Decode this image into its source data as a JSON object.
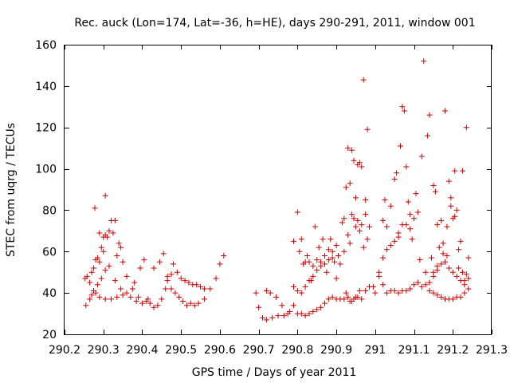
{
  "chart_data": {
    "type": "scatter",
    "title": "Rec. auck (Lon=174, Lat=-36, h=HE), days 290-291, 2011, window 001",
    "xlabel": "GPS time / Days of year 2011",
    "ylabel": "STEC from uqrg / TECUs",
    "xlim": [
      290.2,
      291.3
    ],
    "ylim": [
      20,
      160
    ],
    "xticks": [
      290.2,
      290.3,
      290.4,
      290.5,
      290.6,
      290.7,
      290.8,
      290.9,
      291,
      291.1,
      291.2,
      291.3
    ],
    "xtick_labels": [
      "290.2",
      "290.3",
      "290.4",
      "290.5",
      "290.6",
      "290.7",
      "290.8",
      "290.9",
      "291",
      "291.1",
      "291.2",
      "291.3"
    ],
    "yticks": [
      20,
      40,
      60,
      80,
      100,
      120,
      140,
      160
    ],
    "ytick_labels": [
      "20",
      "40",
      "60",
      "80",
      "100",
      "120",
      "140",
      "160"
    ],
    "grid": false,
    "legend": "none",
    "marker": "plus",
    "color": "#cc0000",
    "series": [
      {
        "points": [
          [
            290.253,
            47
          ],
          [
            290.258,
            48
          ],
          [
            290.265,
            45
          ],
          [
            290.27,
            50
          ],
          [
            290.275,
            52
          ],
          [
            290.28,
            56
          ],
          [
            290.285,
            57
          ],
          [
            290.29,
            55
          ],
          [
            290.295,
            62
          ],
          [
            290.3,
            60
          ],
          [
            290.305,
            68
          ],
          [
            290.31,
            67
          ],
          [
            290.315,
            70
          ],
          [
            290.32,
            75
          ],
          [
            290.33,
            75
          ],
          [
            290.335,
            58
          ],
          [
            290.34,
            64
          ],
          [
            290.345,
            62
          ],
          [
            290.35,
            55
          ],
          [
            290.36,
            48
          ],
          [
            290.38,
            45
          ],
          [
            290.395,
            52
          ],
          [
            290.405,
            56
          ],
          [
            290.255,
            34
          ],
          [
            290.265,
            37
          ],
          [
            290.275,
            41
          ],
          [
            290.285,
            44
          ],
          [
            290.295,
            47
          ],
          [
            290.305,
            51
          ],
          [
            290.315,
            53
          ],
          [
            290.33,
            46
          ],
          [
            290.345,
            42
          ],
          [
            290.36,
            40
          ],
          [
            290.37,
            38
          ],
          [
            290.385,
            36
          ],
          [
            290.4,
            35
          ],
          [
            290.415,
            37
          ],
          [
            290.278,
            81
          ],
          [
            290.29,
            69
          ],
          [
            290.3,
            67
          ],
          [
            290.305,
            87
          ],
          [
            290.325,
            69
          ],
          [
            290.27,
            39
          ],
          [
            290.28,
            40
          ],
          [
            290.29,
            38
          ],
          [
            290.305,
            37
          ],
          [
            290.32,
            37
          ],
          [
            290.335,
            38
          ],
          [
            290.35,
            39
          ],
          [
            290.375,
            42
          ],
          [
            290.39,
            38
          ],
          [
            290.43,
            33
          ],
          [
            290.44,
            34
          ],
          [
            290.45,
            37
          ],
          [
            290.46,
            42
          ],
          [
            290.465,
            48
          ],
          [
            290.475,
            49
          ],
          [
            290.48,
            54
          ],
          [
            290.49,
            50
          ],
          [
            290.5,
            47
          ],
          [
            290.51,
            46
          ],
          [
            290.52,
            45
          ],
          [
            290.53,
            44
          ],
          [
            290.54,
            44
          ],
          [
            290.55,
            43
          ],
          [
            290.56,
            42
          ],
          [
            290.575,
            42
          ],
          [
            290.59,
            47
          ],
          [
            290.6,
            54
          ],
          [
            290.61,
            58
          ],
          [
            290.43,
            52
          ],
          [
            290.445,
            55
          ],
          [
            290.455,
            59
          ],
          [
            290.465,
            46
          ],
          [
            290.475,
            42
          ],
          [
            290.485,
            40
          ],
          [
            290.495,
            38
          ],
          [
            290.505,
            36
          ],
          [
            290.515,
            34
          ],
          [
            290.525,
            35
          ],
          [
            290.535,
            34
          ],
          [
            290.545,
            35
          ],
          [
            290.56,
            37
          ],
          [
            290.42,
            35
          ],
          [
            290.41,
            36
          ],
          [
            290.693,
            40
          ],
          [
            290.7,
            33
          ],
          [
            290.71,
            28
          ],
          [
            290.72,
            27
          ],
          [
            290.72,
            41
          ],
          [
            290.73,
            40
          ],
          [
            290.735,
            28
          ],
          [
            290.745,
            38
          ],
          [
            290.75,
            29
          ],
          [
            290.76,
            34
          ],
          [
            290.765,
            29
          ],
          [
            290.775,
            30
          ],
          [
            290.78,
            31
          ],
          [
            290.79,
            34
          ],
          [
            290.79,
            65
          ],
          [
            290.8,
            79
          ],
          [
            290.805,
            60
          ],
          [
            290.81,
            66
          ],
          [
            290.815,
            54
          ],
          [
            290.82,
            55
          ],
          [
            290.825,
            58
          ],
          [
            290.83,
            55
          ],
          [
            290.835,
            46
          ],
          [
            290.84,
            53
          ],
          [
            290.845,
            72
          ],
          [
            290.85,
            56
          ],
          [
            290.855,
            62
          ],
          [
            290.86,
            55
          ],
          [
            290.865,
            66
          ],
          [
            290.87,
            58
          ],
          [
            290.875,
            50
          ],
          [
            290.88,
            61
          ],
          [
            290.885,
            66
          ],
          [
            290.89,
            57
          ],
          [
            290.895,
            55
          ],
          [
            290.9,
            47
          ],
          [
            290.905,
            58
          ],
          [
            290.91,
            54
          ],
          [
            290.8,
            30
          ],
          [
            290.81,
            30
          ],
          [
            290.82,
            29
          ],
          [
            290.83,
            30
          ],
          [
            290.84,
            31
          ],
          [
            290.85,
            32
          ],
          [
            290.86,
            33
          ],
          [
            290.87,
            35
          ],
          [
            290.88,
            37
          ],
          [
            290.89,
            38
          ],
          [
            290.9,
            37
          ],
          [
            290.91,
            37
          ],
          [
            290.92,
            37
          ],
          [
            290.79,
            43
          ],
          [
            290.8,
            41
          ],
          [
            290.81,
            40
          ],
          [
            290.82,
            43
          ],
          [
            290.83,
            46
          ],
          [
            290.84,
            48
          ],
          [
            290.85,
            51
          ],
          [
            290.86,
            53
          ],
          [
            290.87,
            54
          ],
          [
            290.88,
            56
          ],
          [
            290.89,
            60
          ],
          [
            290.9,
            63
          ],
          [
            290.915,
            74
          ],
          [
            290.92,
            76
          ],
          [
            290.925,
            91
          ],
          [
            290.93,
            110
          ],
          [
            290.935,
            93
          ],
          [
            290.94,
            109
          ],
          [
            290.945,
            104
          ],
          [
            290.95,
            86
          ],
          [
            290.955,
            102
          ],
          [
            290.96,
            103
          ],
          [
            290.965,
            101
          ],
          [
            290.97,
            143
          ],
          [
            290.975,
            85
          ],
          [
            290.98,
            119
          ],
          [
            290.985,
            72
          ],
          [
            290.92,
            60
          ],
          [
            290.93,
            68
          ],
          [
            290.935,
            64
          ],
          [
            290.94,
            78
          ],
          [
            290.945,
            76
          ],
          [
            290.95,
            72
          ],
          [
            290.955,
            75
          ],
          [
            290.96,
            70
          ],
          [
            290.965,
            73
          ],
          [
            290.97,
            62
          ],
          [
            290.975,
            78
          ],
          [
            290.98,
            66
          ],
          [
            290.925,
            40
          ],
          [
            290.93,
            38
          ],
          [
            290.935,
            36
          ],
          [
            290.94,
            36
          ],
          [
            290.945,
            37
          ],
          [
            290.95,
            38
          ],
          [
            290.955,
            38
          ],
          [
            290.96,
            41
          ],
          [
            290.965,
            37
          ],
          [
            290.975,
            41
          ],
          [
            290.985,
            43
          ],
          [
            290.995,
            43
          ],
          [
            291.0,
            40
          ],
          [
            291.01,
            48
          ],
          [
            291.02,
            44
          ],
          [
            291.03,
            40
          ],
          [
            291.04,
            41
          ],
          [
            291.05,
            41
          ],
          [
            291.06,
            40
          ],
          [
            291.07,
            41
          ],
          [
            291.08,
            41
          ],
          [
            291.09,
            42
          ],
          [
            291.1,
            44
          ],
          [
            291.11,
            45
          ],
          [
            291.12,
            43
          ],
          [
            291.13,
            44
          ],
          [
            291.14,
            45
          ],
          [
            291.15,
            48
          ],
          [
            291.16,
            51
          ],
          [
            291.01,
            50
          ],
          [
            291.02,
            57
          ],
          [
            291.03,
            61
          ],
          [
            291.04,
            63
          ],
          [
            291.05,
            65
          ],
          [
            291.06,
            69
          ],
          [
            291.07,
            73
          ],
          [
            291.08,
            73
          ],
          [
            291.09,
            78
          ],
          [
            291.02,
            75
          ],
          [
            291.025,
            85
          ],
          [
            291.03,
            72
          ],
          [
            291.04,
            82
          ],
          [
            291.05,
            95
          ],
          [
            291.055,
            98
          ],
          [
            291.06,
            67
          ],
          [
            291.065,
            111
          ],
          [
            291.07,
            130
          ],
          [
            291.075,
            128
          ],
          [
            291.08,
            101
          ],
          [
            291.085,
            84
          ],
          [
            291.09,
            71
          ],
          [
            291.095,
            66
          ],
          [
            291.1,
            76
          ],
          [
            291.105,
            88
          ],
          [
            291.11,
            79
          ],
          [
            291.115,
            56
          ],
          [
            291.12,
            106
          ],
          [
            291.125,
            152
          ],
          [
            291.13,
            50
          ],
          [
            291.135,
            116
          ],
          [
            291.14,
            126
          ],
          [
            291.145,
            57
          ],
          [
            291.15,
            92
          ],
          [
            291.155,
            89
          ],
          [
            291.16,
            73
          ],
          [
            291.165,
            62
          ],
          [
            291.17,
            75
          ],
          [
            291.175,
            59
          ],
          [
            291.18,
            128
          ],
          [
            291.185,
            58
          ],
          [
            291.19,
            94
          ],
          [
            291.195,
            86
          ],
          [
            291.2,
            76
          ],
          [
            291.205,
            99
          ],
          [
            291.21,
            80
          ],
          [
            291.215,
            52
          ],
          [
            291.22,
            65
          ],
          [
            291.225,
            99
          ],
          [
            291.23,
            46
          ],
          [
            291.235,
            120
          ],
          [
            291.24,
            57
          ],
          [
            291.14,
            41
          ],
          [
            291.15,
            40
          ],
          [
            291.16,
            39
          ],
          [
            291.17,
            38
          ],
          [
            291.18,
            37
          ],
          [
            291.19,
            37
          ],
          [
            291.2,
            37
          ],
          [
            291.21,
            38
          ],
          [
            291.22,
            38
          ],
          [
            291.23,
            40
          ],
          [
            291.24,
            42
          ],
          [
            291.15,
            50
          ],
          [
            291.16,
            53
          ],
          [
            291.17,
            54
          ],
          [
            291.18,
            55
          ],
          [
            291.19,
            52
          ],
          [
            291.2,
            50
          ],
          [
            291.21,
            48
          ],
          [
            291.22,
            46
          ],
          [
            291.23,
            44
          ],
          [
            291.24,
            47
          ],
          [
            291.175,
            64
          ],
          [
            291.185,
            72
          ],
          [
            291.195,
            82
          ],
          [
            291.205,
            77
          ],
          [
            291.215,
            61
          ],
          [
            291.225,
            50
          ],
          [
            291.235,
            49
          ]
        ]
      }
    ]
  }
}
